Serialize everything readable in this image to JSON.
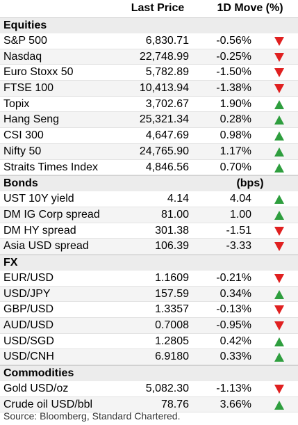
{
  "header": {
    "price_label": "Last Price",
    "move_label": "1D Move (%)"
  },
  "sections": [
    {
      "title": "Equities",
      "unit": "",
      "rows": [
        {
          "name": "S&P 500",
          "price": "6,830.71",
          "move": "-0.56%",
          "direction": "down"
        },
        {
          "name": "Nasdaq",
          "price": "22,748.99",
          "move": "-0.25%",
          "direction": "down"
        },
        {
          "name": "Euro Stoxx 50",
          "price": "5,782.89",
          "move": "-1.50%",
          "direction": "down"
        },
        {
          "name": "FTSE 100",
          "price": "10,413.94",
          "move": "-1.38%",
          "direction": "down"
        },
        {
          "name": "Topix",
          "price": "3,702.67",
          "move": "1.90%",
          "direction": "up"
        },
        {
          "name": "Hang Seng",
          "price": "25,321.34",
          "move": "0.28%",
          "direction": "up"
        },
        {
          "name": "CSI 300",
          "price": "4,647.69",
          "move": "0.98%",
          "direction": "up"
        },
        {
          "name": "Nifty 50",
          "price": "24,765.90",
          "move": "1.17%",
          "direction": "up"
        },
        {
          "name": "Straits Times Index",
          "price": "4,846.56",
          "move": "0.70%",
          "direction": "up"
        }
      ]
    },
    {
      "title": "Bonds",
      "unit": "(bps)",
      "rows": [
        {
          "name": "UST 10Y yield",
          "price": "4.14",
          "move": "4.04",
          "direction": "up"
        },
        {
          "name": "DM IG Corp spread",
          "price": "81.00",
          "move": "1.00",
          "direction": "up"
        },
        {
          "name": "DM HY spread",
          "price": "301.38",
          "move": "-1.51",
          "direction": "down"
        },
        {
          "name": "Asia USD spread",
          "price": "106.39",
          "move": "-3.33",
          "direction": "down"
        }
      ]
    },
    {
      "title": "FX",
      "unit": "",
      "rows": [
        {
          "name": "EUR/USD",
          "price": "1.1609",
          "move": "-0.21%",
          "direction": "down"
        },
        {
          "name": "USD/JPY",
          "price": "157.59",
          "move": "0.34%",
          "direction": "up"
        },
        {
          "name": "GBP/USD",
          "price": "1.3357",
          "move": "-0.13%",
          "direction": "down"
        },
        {
          "name": "AUD/USD",
          "price": "0.7008",
          "move": "-0.95%",
          "direction": "down"
        },
        {
          "name": "USD/SGD",
          "price": "1.2805",
          "move": "0.42%",
          "direction": "up"
        },
        {
          "name": "USD/CNH",
          "price": "6.9180",
          "move": "0.33%",
          "direction": "up"
        }
      ]
    },
    {
      "title": "Commodities",
      "unit": "",
      "rows": [
        {
          "name": "Gold USD/oz",
          "price": "5,082.30",
          "move": "-1.13%",
          "direction": "down"
        },
        {
          "name": "Crude oil USD/bbl",
          "price": "78.76",
          "move": "3.66%",
          "direction": "up"
        }
      ]
    }
  ],
  "footer": {
    "source": "Source: Bloomberg, Standard Chartered."
  },
  "colors": {
    "up": "#2e9e3e",
    "down": "#e02020"
  }
}
